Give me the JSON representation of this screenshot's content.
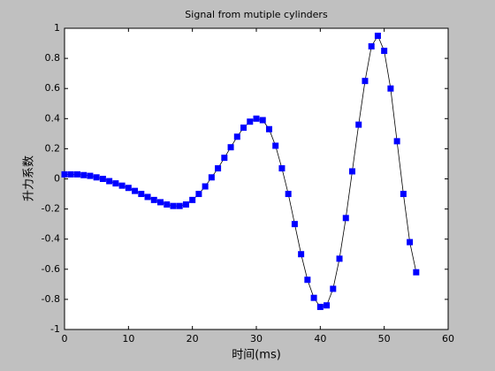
{
  "chart_data": {
    "type": "line",
    "title": "Signal from mutiple cylinders",
    "xlabel": "时间(ms)",
    "ylabel": "升力系数",
    "x": [
      0,
      1,
      2,
      3,
      4,
      5,
      6,
      7,
      8,
      9,
      10,
      11,
      12,
      13,
      14,
      15,
      16,
      17,
      18,
      19,
      20,
      21,
      22,
      23,
      24,
      25,
      26,
      27,
      28,
      29,
      30,
      31,
      32,
      33,
      34,
      35,
      36,
      37,
      38,
      39,
      40,
      41,
      42,
      43,
      44,
      45,
      46,
      47,
      48,
      49,
      50,
      51,
      52,
      53,
      54,
      55
    ],
    "series": [
      {
        "color": "#0000ff",
        "line_color": "#000000",
        "marker": "square",
        "values": [
          0.03,
          0.03,
          0.03,
          0.025,
          0.02,
          0.01,
          0,
          -0.015,
          -0.03,
          -0.045,
          -0.06,
          -0.08,
          -0.1,
          -0.12,
          -0.14,
          -0.155,
          -0.17,
          -0.18,
          -0.18,
          -0.17,
          -0.14,
          -0.1,
          -0.05,
          0.01,
          0.07,
          0.14,
          0.21,
          0.28,
          0.34,
          0.38,
          0.4,
          0.39,
          0.33,
          0.22,
          0.07,
          -0.1,
          -0.3,
          -0.5,
          -0.67,
          -0.79,
          -0.85,
          -0.84,
          -0.73,
          -0.53,
          -0.26,
          0.05,
          0.36,
          0.65,
          0.88,
          0.95,
          0.85,
          0.6,
          0.25,
          -0.1,
          -0.42,
          -0.62
        ]
      }
    ],
    "xlim": [
      0,
      60
    ],
    "xticks": [
      0,
      10,
      20,
      30,
      40,
      50,
      60
    ],
    "ylim": [
      -1,
      1
    ],
    "yticks": [
      -1,
      -0.8,
      -0.6,
      -0.4,
      -0.2,
      0,
      0.2,
      0.4,
      0.6,
      0.8,
      1
    ]
  }
}
